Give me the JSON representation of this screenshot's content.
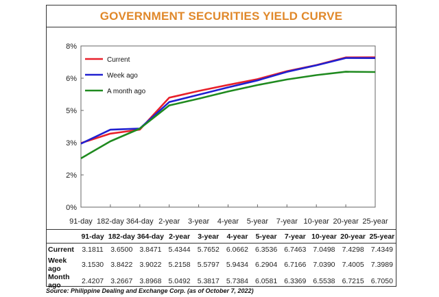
{
  "chart_data": {
    "type": "line",
    "title": "GOVERNMENT SECURITIES YIELD CURVE",
    "categories": [
      "91-day",
      "182-day",
      "364-day",
      "2-year",
      "3-year",
      "4-year",
      "5-year",
      "7-year",
      "10-year",
      "20-year",
      "25-year"
    ],
    "ylim": [
      0,
      8
    ],
    "y_ticks": [
      "0%",
      "2%",
      "3%",
      "5%",
      "6%",
      "8%"
    ],
    "grid": false,
    "legend_position": "top-left",
    "series": [
      {
        "name": "Current",
        "color": "#e8202a",
        "values": [
          3.1811,
          3.65,
          3.8471,
          5.4344,
          5.7652,
          6.0662,
          6.3536,
          6.7463,
          7.0498,
          7.4298,
          7.4349
        ]
      },
      {
        "name": "Week ago",
        "color": "#2020d0",
        "values": [
          3.153,
          3.8422,
          3.9022,
          5.2158,
          5.5797,
          5.9434,
          6.2904,
          6.7166,
          7.039,
          7.4005,
          7.3989
        ]
      },
      {
        "name": "A month ago",
        "color": "#1f8a1f",
        "values": [
          2.4207,
          3.2667,
          3.8968,
          5.0492,
          5.3817,
          5.7384,
          6.0581,
          6.3369,
          6.5538,
          6.7215,
          6.705
        ]
      }
    ]
  },
  "table": {
    "headers": [
      "91-day",
      "182-day",
      "364-day",
      "2-year",
      "3-year",
      "4-year",
      "5-year",
      "7-year",
      "10-year",
      "20-year",
      "25-year"
    ],
    "rows": [
      {
        "label": "Current",
        "values": [
          "3.1811",
          "3.6500",
          "3.8471",
          "5.4344",
          "5.7652",
          "6.0662",
          "6.3536",
          "6.7463",
          "7.0498",
          "7.4298",
          "7.4349"
        ]
      },
      {
        "label": "Week ago",
        "values": [
          "3.1530",
          "3.8422",
          "3.9022",
          "5.2158",
          "5.5797",
          "5.9434",
          "6.2904",
          "6.7166",
          "7.0390",
          "7.4005",
          "7.3989"
        ]
      },
      {
        "label": "Month ago",
        "values": [
          "2.4207",
          "3.2667",
          "3.8968",
          "5.0492",
          "5.3817",
          "5.7384",
          "6.0581",
          "6.3369",
          "6.5538",
          "6.7215",
          "6.7050"
        ]
      }
    ]
  },
  "source": "Source: Philippine Dealing and Exchange Corp. (as of October 7, 2022)"
}
